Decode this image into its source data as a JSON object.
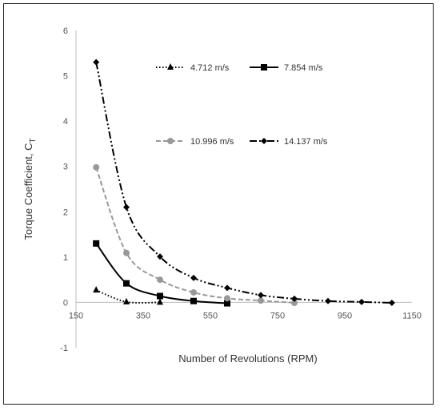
{
  "chart_data": {
    "type": "line",
    "xlabel": "Number of Revolutions (RPM)",
    "ylabel_main": "Torque Coefficient, C",
    "ylabel_sub": "T",
    "xlim": [
      150,
      1150
    ],
    "ylim": [
      -1,
      6
    ],
    "xticks": [
      "150",
      "350",
      "550",
      "750",
      "950",
      "1150"
    ],
    "yticks": [
      "-1",
      "0",
      "1",
      "2",
      "3",
      "4",
      "5",
      "6"
    ],
    "grid": false,
    "legend_position": "top-right",
    "series": [
      {
        "name": "4.712 m/s",
        "color": "#000000",
        "marker": "triangle",
        "dash": "dotted",
        "x": [
          210,
          300,
          400
        ],
        "y": [
          0.27,
          0.01,
          0.0
        ]
      },
      {
        "name": "7.854 m/s",
        "color": "#000000",
        "marker": "square",
        "dash": "solid",
        "x": [
          210,
          300,
          400,
          500,
          600
        ],
        "y": [
          1.3,
          0.42,
          0.14,
          0.03,
          -0.02
        ]
      },
      {
        "name": "10.996 m/s",
        "color": "#999999",
        "marker": "circle",
        "dash": "dashed",
        "x": [
          210,
          300,
          400,
          500,
          600,
          700,
          800
        ],
        "y": [
          2.98,
          1.09,
          0.5,
          0.22,
          0.09,
          0.04,
          -0.01
        ]
      },
      {
        "name": "14.137 m/s",
        "color": "#000000",
        "marker": "diamond",
        "dash": "dashdotdot",
        "x": [
          210,
          300,
          400,
          500,
          600,
          700,
          800,
          900,
          1000,
          1090
        ],
        "y": [
          5.3,
          2.1,
          1.01,
          0.54,
          0.32,
          0.16,
          0.08,
          0.03,
          0.01,
          -0.01
        ]
      }
    ]
  }
}
